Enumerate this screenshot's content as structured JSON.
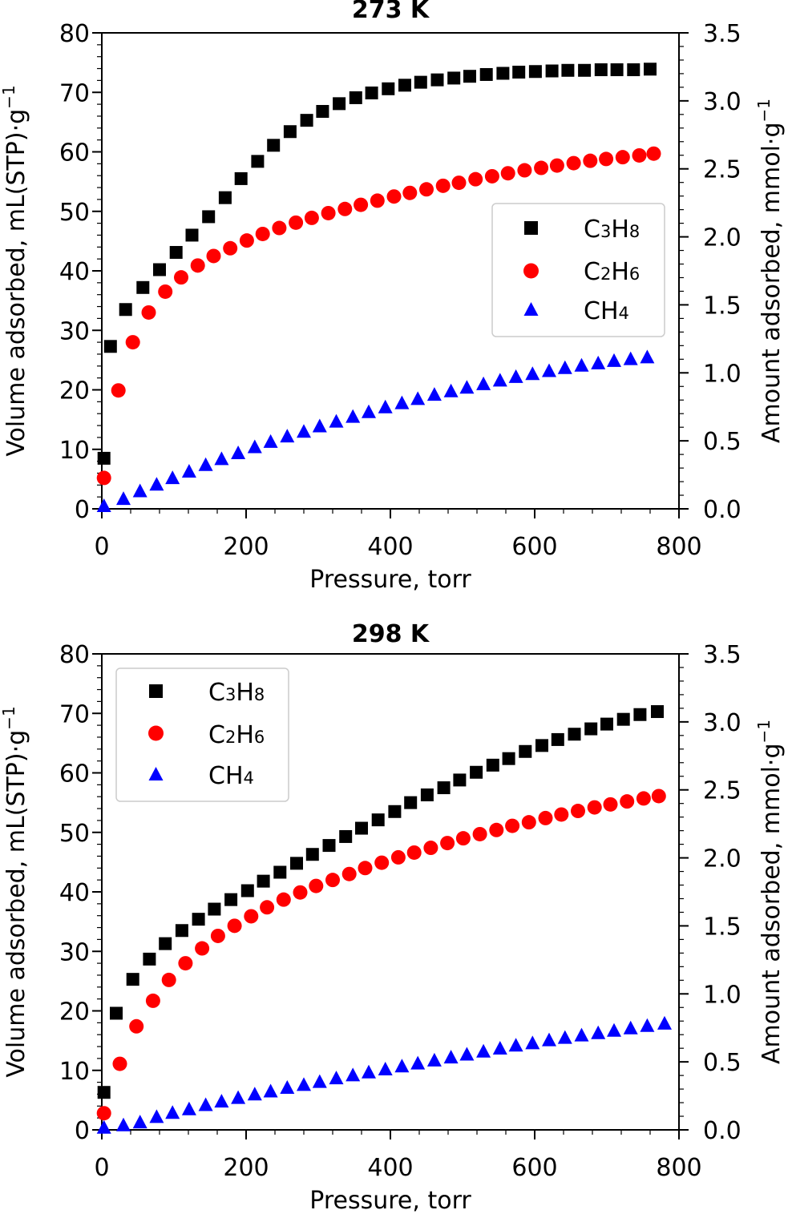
{
  "chart_data": [
    {
      "type": "scatter",
      "title": "273 K",
      "xlabel": "Pressure, torr",
      "ylabel": "Volume adsorbed, mL(STP)·g",
      "ylabel_sup": "−1",
      "y2label": "Amount adsorbed, mmol·g",
      "y2label_sup": "−1",
      "xlim": [
        0,
        800
      ],
      "ylim": [
        0,
        80
      ],
      "y2lim": [
        0,
        3.5
      ],
      "xticks": [
        "0",
        "200",
        "400",
        "600",
        "800"
      ],
      "yticks": [
        "0",
        "10",
        "20",
        "30",
        "40",
        "50",
        "60",
        "70",
        "80"
      ],
      "y2ticks": [
        "0.0",
        "0.5",
        "1.0",
        "1.5",
        "2.0",
        "2.5",
        "3.0",
        "3.5"
      ],
      "grid": false,
      "legend": "center-right",
      "series": [
        {
          "name": "C3H8",
          "label_base": "C",
          "label_sub1": "3",
          "label_mid": "H",
          "label_sub2": "8",
          "marker": "square",
          "color": "#000000",
          "x": [
            3,
            12,
            33,
            57,
            80,
            103,
            125,
            148,
            171,
            193,
            216,
            238,
            261,
            284,
            306,
            329,
            352,
            374,
            397,
            420,
            442,
            465,
            488,
            510,
            533,
            556,
            578,
            601,
            624,
            646,
            669,
            692,
            714,
            737,
            760
          ],
          "y": [
            8.5,
            27.3,
            33.5,
            37.2,
            40.2,
            43.1,
            46.0,
            49.1,
            52.3,
            55.5,
            58.4,
            61.1,
            63.4,
            65.3,
            66.8,
            68.1,
            69.1,
            69.9,
            70.6,
            71.2,
            71.7,
            72.1,
            72.4,
            72.7,
            73.0,
            73.2,
            73.4,
            73.5,
            73.6,
            73.7,
            73.7,
            73.8,
            73.8,
            73.8,
            73.9
          ]
        },
        {
          "name": "C2H6",
          "label_base": "C",
          "label_sub1": "2",
          "label_mid": "H",
          "label_sub2": "6",
          "marker": "circle",
          "color": "#ff0000",
          "x": [
            3,
            23,
            43,
            65,
            88,
            110,
            133,
            155,
            178,
            201,
            223,
            246,
            269,
            291,
            314,
            337,
            359,
            382,
            405,
            427,
            450,
            473,
            495,
            518,
            541,
            563,
            586,
            609,
            631,
            654,
            677,
            699,
            722,
            745,
            765
          ],
          "y": [
            5.2,
            19.9,
            28.0,
            33.0,
            36.5,
            38.9,
            40.9,
            42.5,
            43.8,
            45.1,
            46.2,
            47.2,
            48.1,
            48.9,
            49.7,
            50.4,
            51.1,
            51.8,
            52.5,
            53.1,
            53.7,
            54.3,
            54.8,
            55.4,
            55.9,
            56.4,
            56.9,
            57.3,
            57.7,
            58.1,
            58.5,
            58.8,
            59.1,
            59.4,
            59.7
          ]
        },
        {
          "name": "CH4",
          "label_base": "CH",
          "label_sub1": "4",
          "label_mid": "",
          "label_sub2": "",
          "marker": "triangle",
          "color": "#0000ff",
          "x": [
            3,
            30,
            53,
            76,
            98,
            121,
            144,
            166,
            189,
            212,
            234,
            257,
            280,
            302,
            325,
            348,
            370,
            393,
            416,
            438,
            461,
            484,
            506,
            529,
            552,
            574,
            597,
            620,
            642,
            665,
            688,
            710,
            733,
            756
          ],
          "y": [
            0.4,
            1.6,
            2.9,
            4.0,
            5.1,
            6.2,
            7.3,
            8.3,
            9.3,
            10.3,
            11.2,
            12.1,
            12.9,
            13.8,
            14.6,
            15.4,
            16.2,
            17.0,
            17.7,
            18.4,
            19.1,
            19.7,
            20.3,
            20.9,
            21.5,
            22.1,
            22.6,
            23.1,
            23.6,
            24.0,
            24.4,
            24.8,
            25.1,
            25.4
          ]
        }
      ]
    },
    {
      "type": "scatter",
      "title": "298 K",
      "xlabel": "Pressure, torr",
      "ylabel": "Volume adsorbed, mL(STP)·g",
      "ylabel_sup": "−1",
      "y2label": "Amount adsorbed, mmol·g",
      "y2label_sup": "−1",
      "xlim": [
        0,
        800
      ],
      "ylim": [
        0,
        80
      ],
      "y2lim": [
        0,
        3.5
      ],
      "xticks": [
        "0",
        "200",
        "400",
        "600",
        "800"
      ],
      "yticks": [
        "0",
        "10",
        "20",
        "30",
        "40",
        "50",
        "60",
        "70",
        "80"
      ],
      "y2ticks": [
        "0.0",
        "0.5",
        "1.0",
        "1.5",
        "2.0",
        "2.5",
        "3.0",
        "3.5"
      ],
      "grid": false,
      "legend": "top-left",
      "series": [
        {
          "name": "C3H8",
          "label_base": "C",
          "label_sub1": "3",
          "label_mid": "H",
          "label_sub2": "8",
          "marker": "square",
          "color": "#000000",
          "x": [
            3,
            20,
            43,
            66,
            88,
            111,
            134,
            156,
            179,
            202,
            224,
            247,
            270,
            292,
            315,
            338,
            360,
            383,
            406,
            428,
            451,
            474,
            496,
            519,
            542,
            564,
            587,
            610,
            632,
            655,
            678,
            700,
            723,
            746,
            770
          ],
          "y": [
            6.3,
            19.6,
            25.3,
            28.7,
            31.3,
            33.5,
            35.4,
            37.1,
            38.7,
            40.2,
            41.8,
            43.3,
            44.8,
            46.3,
            47.8,
            49.3,
            50.7,
            52.1,
            53.5,
            55.0,
            56.3,
            57.5,
            58.8,
            60.1,
            61.3,
            62.4,
            63.6,
            64.6,
            65.6,
            66.5,
            67.4,
            68.2,
            69.0,
            69.8,
            70.3
          ]
        },
        {
          "name": "C2H6",
          "label_base": "C",
          "label_sub1": "2",
          "label_mid": "H",
          "label_sub2": "6",
          "marker": "circle",
          "color": "#ff0000",
          "x": [
            3,
            25,
            48,
            71,
            93,
            116,
            139,
            161,
            184,
            207,
            229,
            252,
            275,
            297,
            320,
            343,
            365,
            388,
            411,
            433,
            456,
            479,
            501,
            524,
            547,
            569,
            592,
            615,
            637,
            660,
            683,
            705,
            728,
            751,
            772
          ],
          "y": [
            2.8,
            11.1,
            17.4,
            21.7,
            25.2,
            28.0,
            30.5,
            32.6,
            34.3,
            35.9,
            37.4,
            38.7,
            39.9,
            41.0,
            42.0,
            43.0,
            44.0,
            44.9,
            45.8,
            46.6,
            47.4,
            48.2,
            49.0,
            49.7,
            50.4,
            51.1,
            51.7,
            52.4,
            53.0,
            53.6,
            54.2,
            54.7,
            55.2,
            55.7,
            56.1
          ]
        },
        {
          "name": "CH4",
          "label_base": "CH",
          "label_sub1": "4",
          "label_mid": "",
          "label_sub2": "",
          "marker": "triangle",
          "color": "#0000ff",
          "x": [
            3,
            30,
            53,
            76,
            98,
            121,
            144,
            166,
            189,
            212,
            234,
            257,
            280,
            302,
            325,
            348,
            370,
            393,
            416,
            438,
            461,
            484,
            506,
            529,
            552,
            574,
            597,
            620,
            642,
            665,
            688,
            710,
            733,
            756,
            780
          ],
          "y": [
            0.3,
            0.7,
            1.2,
            2.1,
            2.8,
            3.4,
            4.1,
            4.7,
            5.3,
            5.9,
            6.4,
            7.0,
            7.5,
            8.0,
            8.6,
            9.1,
            9.6,
            10.1,
            10.6,
            11.1,
            11.6,
            12.1,
            12.6,
            13.1,
            13.6,
            14.1,
            14.5,
            15.0,
            15.4,
            15.8,
            16.2,
            16.6,
            17.0,
            17.4,
            17.8
          ]
        }
      ]
    }
  ]
}
